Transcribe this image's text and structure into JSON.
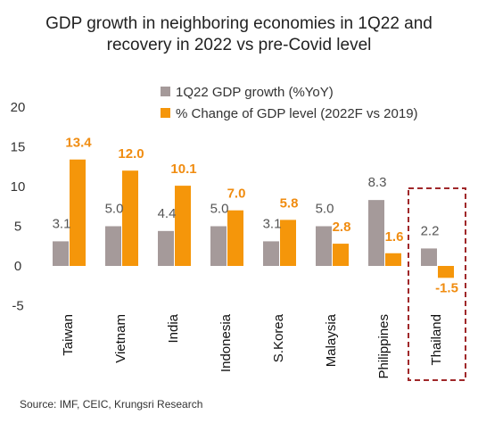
{
  "chart_data": {
    "type": "bar",
    "title_lines": [
      "GDP growth in neighboring economies in 1Q22 and",
      "recovery in 2022 vs pre-Covid level"
    ],
    "categories": [
      "Taiwan",
      "Vietnam",
      "India",
      "Indonesia",
      "S.Korea",
      "Malaysia",
      "Philippines",
      "Thailand"
    ],
    "series": [
      {
        "name": "1Q22 GDP growth (%YoY)",
        "color": "#a59a9a",
        "values": [
          3.1,
          5.0,
          4.4,
          5.0,
          3.1,
          5.0,
          8.3,
          2.2
        ]
      },
      {
        "name": "% Change of GDP level (2022F vs 2019)",
        "color": "#f5960a",
        "values": [
          13.4,
          12.0,
          10.1,
          7.0,
          5.8,
          2.8,
          1.6,
          -1.5
        ]
      }
    ],
    "data_labels": [
      [
        "3.1",
        "5.0",
        "4.4",
        "5.0",
        "3.1",
        "5.0",
        "8.3",
        "2.2"
      ],
      [
        "13.4",
        "12.0",
        "10.1",
        "7.0",
        "5.8",
        "2.8",
        "1.6",
        "-1.5"
      ]
    ],
    "ylim": [
      -5,
      20
    ],
    "yticks": [
      "-5",
      "0",
      "5",
      "10",
      "15",
      "20"
    ],
    "ytick_values": [
      -5,
      0,
      5,
      10,
      15,
      20
    ],
    "grid": false,
    "legend_position": "top-right",
    "highlight_category": "Thailand",
    "highlight_color": "#a0282a",
    "label_color_b": "#f08c10",
    "source": "Source: IMF, CEIC, Krungsri Research"
  }
}
